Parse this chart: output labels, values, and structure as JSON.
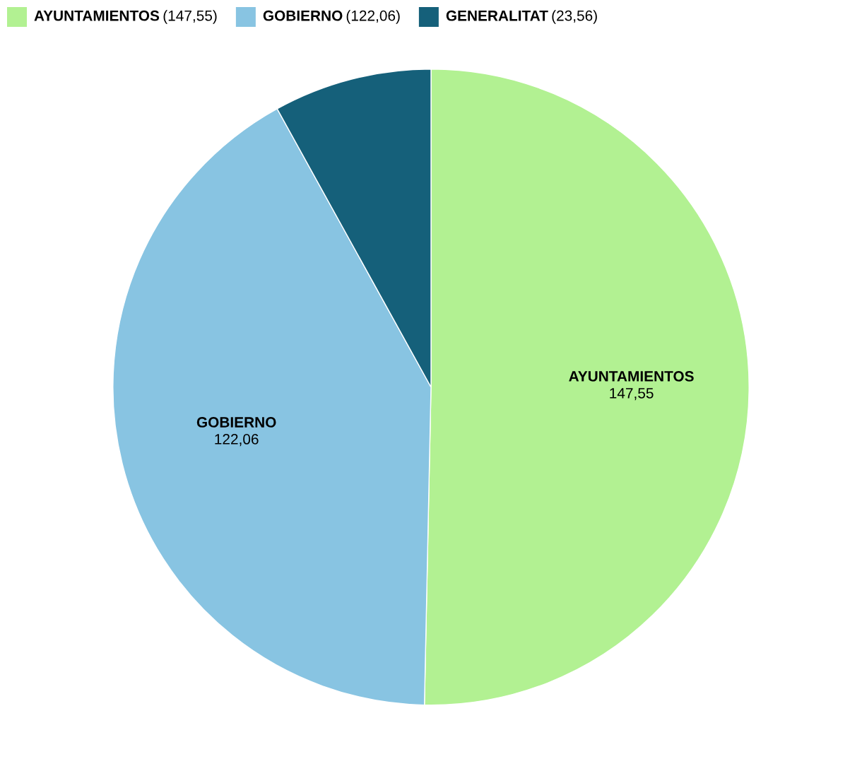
{
  "chart_data": {
    "type": "pie",
    "categories": [
      "AYUNTAMIENTOS",
      "GOBIERNO",
      "GENERALITAT"
    ],
    "values": [
      147.55,
      122.06,
      23.56
    ],
    "value_labels": [
      "147,55",
      "122,06",
      null
    ],
    "colors": [
      "#b2f192",
      "#88c4e2",
      "#15607a"
    ],
    "annotations": [
      "(147,55)",
      "(122,06)",
      "(23,56)"
    ],
    "legend": "top left"
  }
}
